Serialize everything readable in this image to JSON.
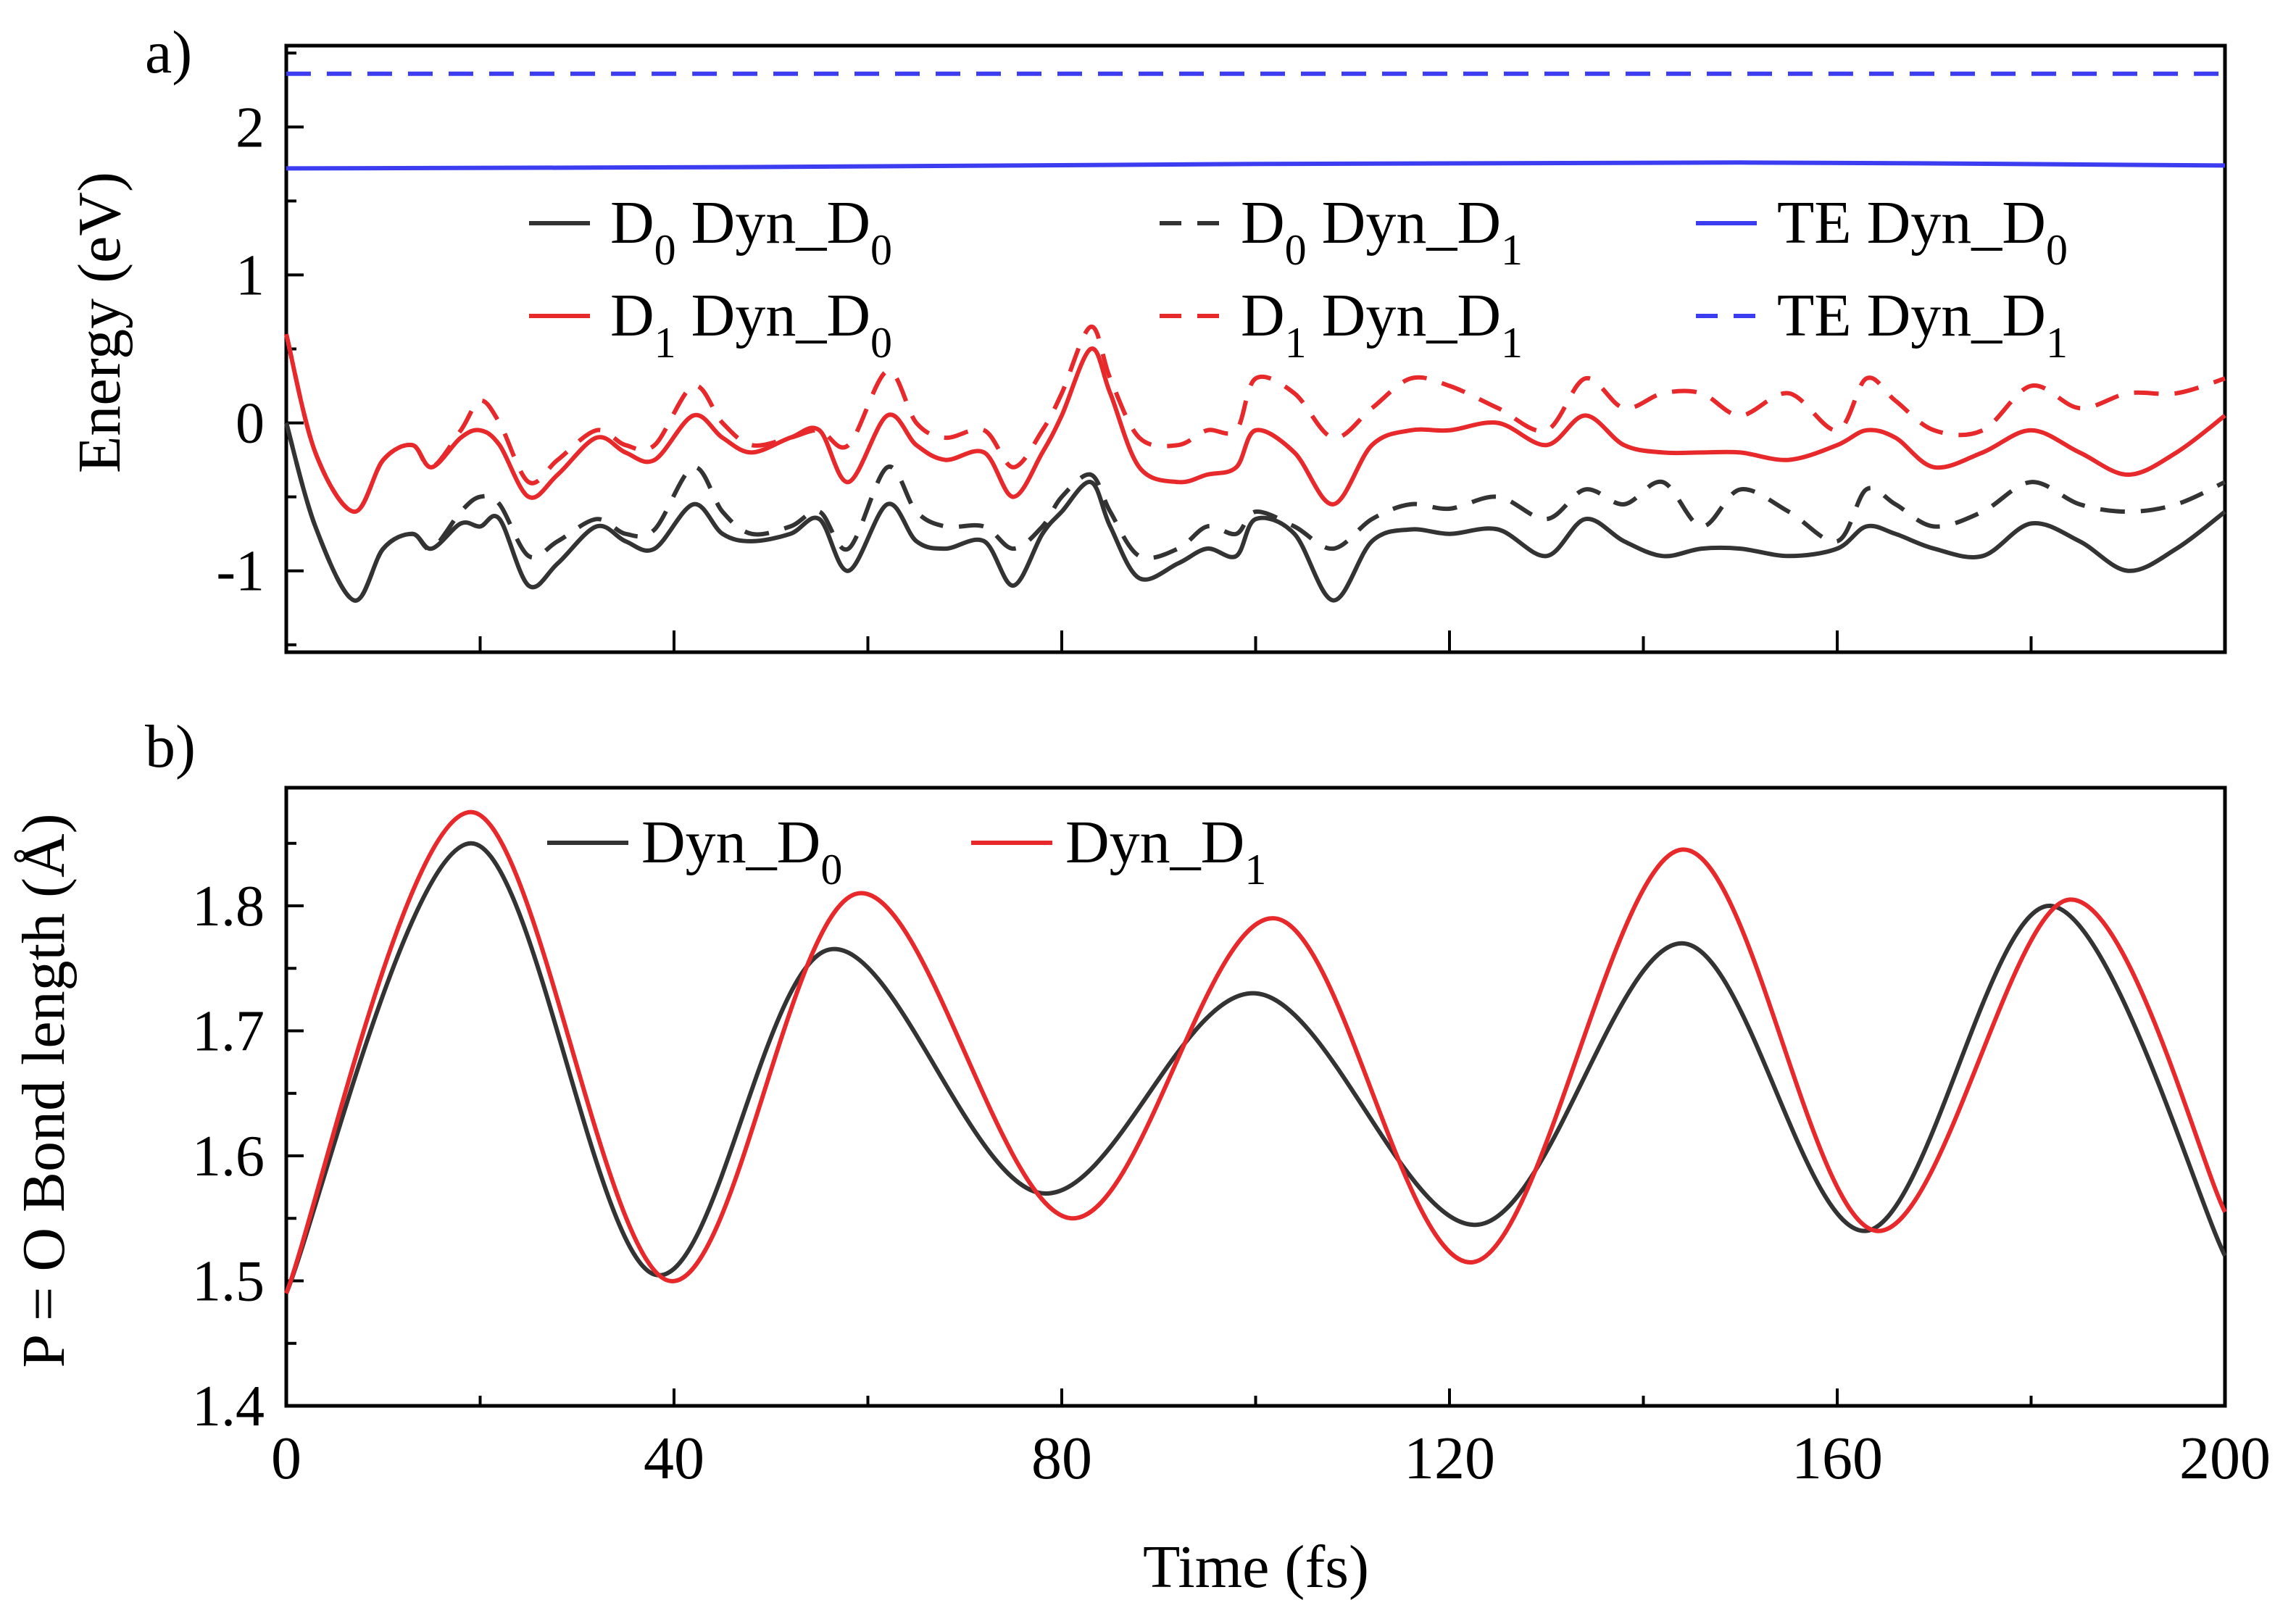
{
  "figure": {
    "panel_a_label": "a)",
    "panel_b_label": "b)",
    "x_label": "Time (fs)"
  },
  "chart_data": [
    {
      "panel": "a",
      "type": "line",
      "ylabel": "Energy (eV)",
      "xlabel": "",
      "xlim": [
        0,
        200
      ],
      "ylim": [
        -1.55,
        2.55
      ],
      "x_ticks": [
        0,
        20,
        40,
        60,
        80,
        100,
        120,
        140,
        160,
        180,
        200
      ],
      "y_ticks": [
        -1,
        0,
        1,
        2
      ],
      "y_tick_labels": [
        "-1",
        "0",
        "1",
        "2"
      ],
      "legend": {
        "placement": "top",
        "entries": [
          {
            "series": "D0_Dyn_D0",
            "prefix": "D",
            "sub": "0",
            "mid": " Dyn_D",
            "sub2": "0"
          },
          {
            "series": "D0_Dyn_D1",
            "prefix": "D",
            "sub": "0",
            "mid": " Dyn_D",
            "sub2": "1"
          },
          {
            "series": "TE_Dyn_D0",
            "prefix": "TE Dyn_D",
            "sub": "0",
            "mid": "",
            "sub2": ""
          },
          {
            "series": "D1_Dyn_D0",
            "prefix": "D",
            "sub": "1",
            "mid": " Dyn_D",
            "sub2": "0"
          },
          {
            "series": "D1_Dyn_D1",
            "prefix": "D",
            "sub": "1",
            "mid": " Dyn_D",
            "sub2": "1"
          },
          {
            "series": "TE_Dyn_D1",
            "prefix": "TE Dyn_D",
            "sub": "1",
            "mid": "",
            "sub2": ""
          }
        ]
      },
      "series": [
        {
          "name": "D0 Dyn_D0",
          "color": "#333333",
          "dash": "solid",
          "x": [
            0,
            3,
            7,
            10,
            13,
            15,
            18,
            20,
            22,
            25,
            28,
            32,
            35,
            38,
            42,
            45,
            48,
            52,
            55,
            58,
            62,
            65,
            68,
            72,
            75,
            78,
            80,
            83,
            85,
            88,
            92,
            95,
            98,
            100,
            104,
            108,
            112,
            116,
            120,
            125,
            130,
            134,
            138,
            142,
            146,
            150,
            155,
            160,
            163,
            166,
            170,
            175,
            180,
            185,
            190,
            195,
            200
          ],
          "y": [
            0,
            -0.7,
            -1.2,
            -0.85,
            -0.75,
            -0.85,
            -0.68,
            -0.7,
            -0.65,
            -1.1,
            -0.95,
            -0.7,
            -0.8,
            -0.85,
            -0.55,
            -0.75,
            -0.8,
            -0.75,
            -0.65,
            -1.0,
            -0.55,
            -0.8,
            -0.85,
            -0.8,
            -1.1,
            -0.75,
            -0.6,
            -0.4,
            -0.7,
            -1.05,
            -0.95,
            -0.85,
            -0.9,
            -0.65,
            -0.75,
            -1.2,
            -0.8,
            -0.72,
            -0.75,
            -0.72,
            -0.9,
            -0.65,
            -0.8,
            -0.9,
            -0.85,
            -0.85,
            -0.9,
            -0.85,
            -0.7,
            -0.75,
            -0.85,
            -0.9,
            -0.68,
            -0.8,
            -1.0,
            -0.85,
            -0.6
          ]
        },
        {
          "name": "D0 Dyn_D1",
          "color": "#333333",
          "dash": "dash",
          "x": [
            0,
            3,
            7,
            10,
            13,
            15,
            18,
            20,
            22,
            25,
            28,
            32,
            35,
            38,
            42,
            45,
            48,
            52,
            55,
            58,
            62,
            65,
            68,
            72,
            75,
            78,
            80,
            83,
            85,
            88,
            92,
            95,
            98,
            100,
            104,
            108,
            112,
            116,
            120,
            125,
            130,
            134,
            138,
            142,
            146,
            150,
            155,
            160,
            163,
            166,
            170,
            175,
            180,
            185,
            190,
            195,
            200
          ],
          "y": [
            0,
            -0.7,
            -1.2,
            -0.85,
            -0.75,
            -0.85,
            -0.6,
            -0.5,
            -0.55,
            -0.9,
            -0.8,
            -0.65,
            -0.75,
            -0.72,
            -0.3,
            -0.6,
            -0.75,
            -0.7,
            -0.6,
            -0.85,
            -0.3,
            -0.6,
            -0.7,
            -0.7,
            -0.85,
            -0.7,
            -0.5,
            -0.35,
            -0.6,
            -0.9,
            -0.85,
            -0.7,
            -0.75,
            -0.6,
            -0.7,
            -0.85,
            -0.65,
            -0.55,
            -0.58,
            -0.5,
            -0.65,
            -0.45,
            -0.55,
            -0.4,
            -0.7,
            -0.45,
            -0.6,
            -0.8,
            -0.45,
            -0.55,
            -0.7,
            -0.6,
            -0.4,
            -0.55,
            -0.6,
            -0.55,
            -0.4
          ]
        },
        {
          "name": "D1 Dyn_D0",
          "color": "#e8292b",
          "dash": "solid",
          "x": [
            0,
            3,
            7,
            10,
            13,
            15,
            18,
            20,
            22,
            25,
            28,
            32,
            35,
            38,
            42,
            45,
            48,
            52,
            55,
            58,
            62,
            65,
            68,
            72,
            75,
            78,
            80,
            83,
            85,
            88,
            92,
            95,
            98,
            100,
            104,
            108,
            112,
            116,
            120,
            125,
            130,
            134,
            138,
            142,
            146,
            150,
            155,
            160,
            163,
            166,
            170,
            175,
            180,
            185,
            190,
            195,
            200
          ],
          "y": [
            0.6,
            -0.2,
            -0.6,
            -0.25,
            -0.15,
            -0.3,
            -0.1,
            -0.05,
            -0.15,
            -0.5,
            -0.35,
            -0.1,
            -0.2,
            -0.25,
            0.05,
            -0.1,
            -0.2,
            -0.1,
            -0.05,
            -0.4,
            0.05,
            -0.15,
            -0.25,
            -0.2,
            -0.5,
            -0.2,
            0.05,
            0.5,
            0.2,
            -0.3,
            -0.4,
            -0.35,
            -0.3,
            -0.05,
            -0.2,
            -0.55,
            -0.15,
            -0.05,
            -0.05,
            0.0,
            -0.15,
            0.05,
            -0.15,
            -0.2,
            -0.2,
            -0.2,
            -0.25,
            -0.15,
            -0.05,
            -0.1,
            -0.3,
            -0.2,
            -0.05,
            -0.2,
            -0.35,
            -0.2,
            0.05
          ]
        },
        {
          "name": "D1 Dyn_D1",
          "color": "#e8292b",
          "dash": "dash",
          "x": [
            0,
            3,
            7,
            10,
            13,
            15,
            18,
            20,
            22,
            25,
            28,
            32,
            35,
            38,
            42,
            45,
            48,
            52,
            55,
            58,
            62,
            65,
            68,
            72,
            75,
            78,
            80,
            83,
            85,
            88,
            92,
            95,
            98,
            100,
            104,
            108,
            112,
            116,
            120,
            125,
            130,
            134,
            138,
            142,
            146,
            150,
            155,
            160,
            163,
            166,
            170,
            175,
            180,
            185,
            190,
            195,
            200
          ],
          "y": [
            0.6,
            -0.2,
            -0.6,
            -0.25,
            -0.15,
            -0.3,
            -0.05,
            0.15,
            0.0,
            -0.4,
            -0.25,
            -0.05,
            -0.15,
            -0.15,
            0.25,
            0.0,
            -0.15,
            -0.1,
            -0.05,
            -0.15,
            0.35,
            0.0,
            -0.1,
            -0.05,
            -0.3,
            -0.05,
            0.2,
            0.65,
            0.3,
            -0.1,
            -0.15,
            -0.05,
            -0.05,
            0.3,
            0.2,
            -0.1,
            0.1,
            0.3,
            0.25,
            0.1,
            -0.05,
            0.3,
            0.1,
            0.2,
            0.2,
            0.05,
            0.2,
            -0.05,
            0.3,
            0.15,
            -0.05,
            -0.05,
            0.25,
            0.1,
            0.2,
            0.2,
            0.3
          ]
        },
        {
          "name": "TE Dyn_D0",
          "color": "#3c3cf0",
          "dash": "solid",
          "x": [
            0,
            50,
            100,
            150,
            200
          ],
          "y": [
            1.72,
            1.73,
            1.75,
            1.76,
            1.74
          ]
        },
        {
          "name": "TE Dyn_D1",
          "color": "#3c3cf0",
          "dash": "dash",
          "x": [
            0,
            50,
            100,
            150,
            200
          ],
          "y": [
            2.36,
            2.36,
            2.36,
            2.36,
            2.36
          ]
        }
      ]
    },
    {
      "panel": "b",
      "type": "line",
      "ylabel": "P = O Bond length (Å)",
      "xlabel": "Time (fs)",
      "xlim": [
        0,
        200
      ],
      "ylim": [
        1.4,
        1.9
      ],
      "x_ticks": [
        0,
        40,
        80,
        120,
        160,
        200
      ],
      "x_tick_labels": [
        "0",
        "40",
        "80",
        "120",
        "160",
        "200"
      ],
      "x_minor_ticks": [
        20,
        60,
        100,
        140,
        180
      ],
      "y_ticks": [
        1.4,
        1.5,
        1.6,
        1.7,
        1.8
      ],
      "y_tick_labels": [
        "1.4",
        "1.5",
        "1.6",
        "1.7",
        "1.8"
      ],
      "legend": {
        "placement": "top-left",
        "entries": [
          {
            "series": "Dyn_D0",
            "prefix": "Dyn_D",
            "sub": "0"
          },
          {
            "series": "Dyn_D1",
            "prefix": "Dyn_D",
            "sub": "1"
          }
        ]
      },
      "series": [
        {
          "name": "Dyn_D0",
          "color": "#333333",
          "dash": "solid",
          "x": [
            0,
            19,
            38,
            56,
            78,
            100,
            123,
            144,
            163,
            182,
            200
          ],
          "y": [
            1.49,
            1.85,
            1.505,
            1.765,
            1.57,
            1.73,
            1.545,
            1.77,
            1.54,
            1.8,
            1.52
          ]
        },
        {
          "name": "Dyn_D1",
          "color": "#e8292b",
          "dash": "solid",
          "x": [
            0,
            19,
            39.5,
            59,
            81,
            102,
            122.5,
            144,
            164,
            184,
            200
          ],
          "y": [
            1.49,
            1.875,
            1.5,
            1.81,
            1.55,
            1.79,
            1.515,
            1.845,
            1.54,
            1.805,
            1.555
          ]
        }
      ]
    }
  ]
}
